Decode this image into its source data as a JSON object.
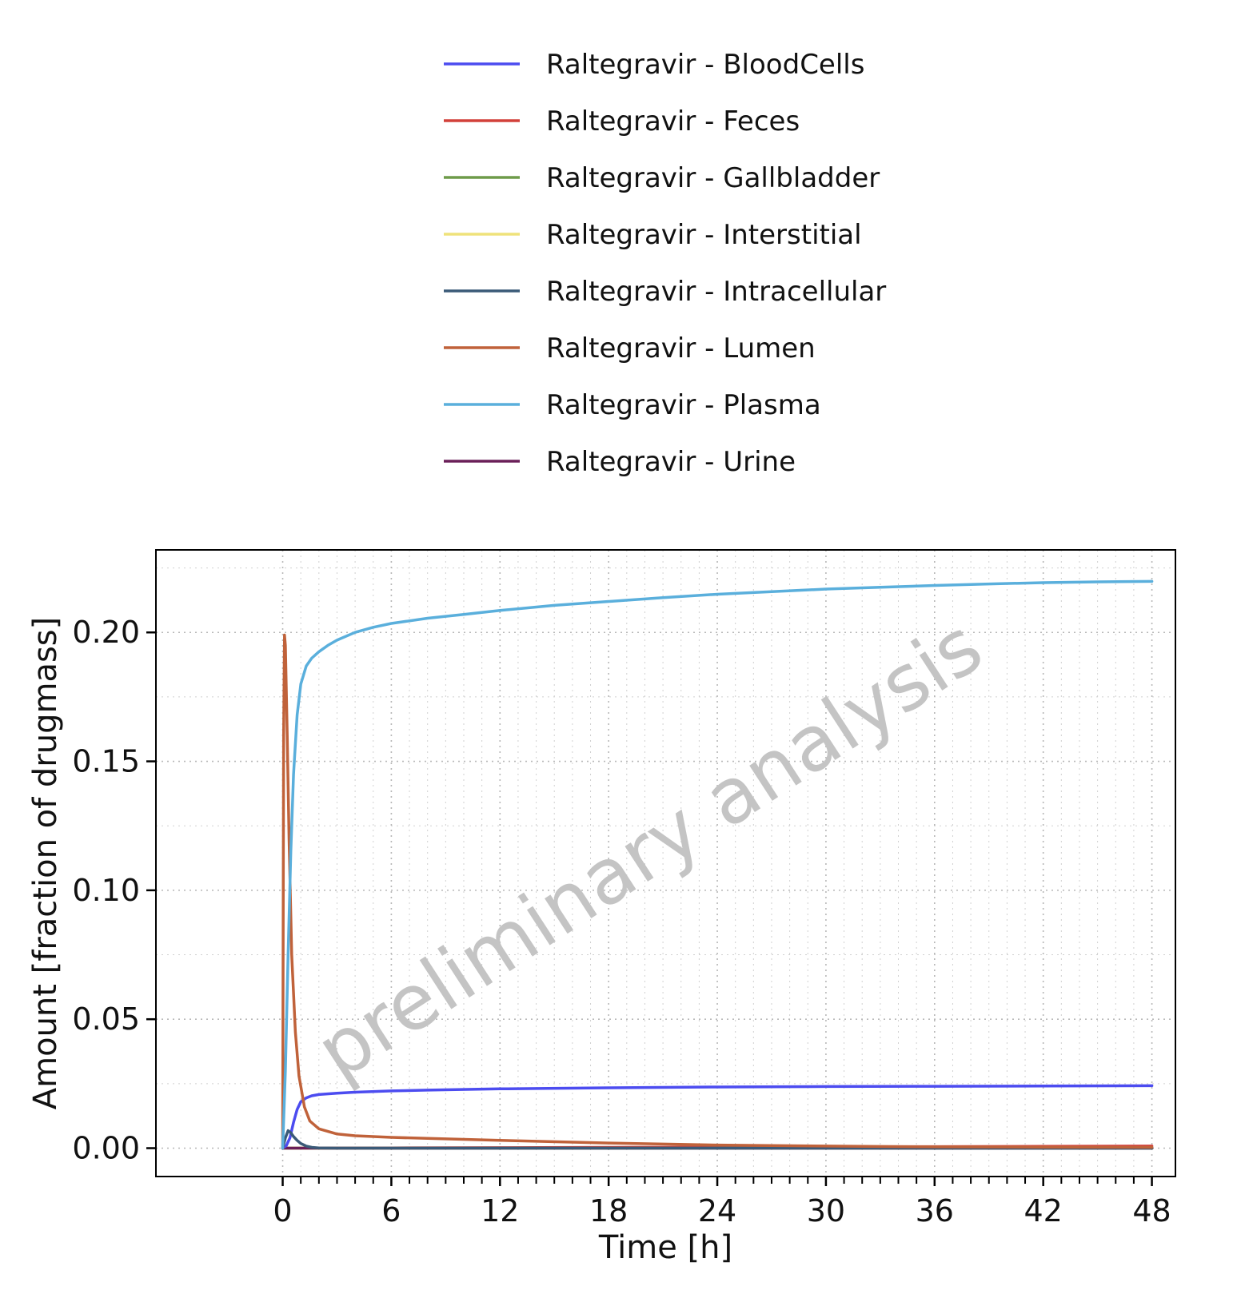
{
  "chart_data": {
    "type": "line",
    "xlabel": "Time [h]",
    "ylabel": "Amount [fraction of drugmass]",
    "xlim": [
      -7,
      49.3
    ],
    "ylim": [
      -0.011,
      0.232
    ],
    "x_ticks": [
      0,
      6,
      12,
      18,
      24,
      30,
      36,
      42,
      48
    ],
    "y_ticks": [
      0.0,
      0.05,
      0.1,
      0.15,
      0.2
    ],
    "y_tick_labels": [
      "0.00",
      "0.05",
      "0.10",
      "0.15",
      "0.20"
    ],
    "grid": true,
    "legend_position": "top",
    "watermark": "preliminary analysis",
    "series": [
      {
        "name": "Raltegravir - BloodCells",
        "color": "#4c4cf0",
        "x": [
          0,
          0.2,
          0.4,
          0.6,
          0.8,
          1.0,
          1.3,
          1.6,
          2,
          3,
          4,
          6,
          8,
          12,
          18,
          24,
          30,
          36,
          42,
          48
        ],
        "y": [
          0,
          0.001,
          0.004,
          0.01,
          0.015,
          0.018,
          0.0195,
          0.0203,
          0.0208,
          0.0213,
          0.0217,
          0.0222,
          0.0225,
          0.023,
          0.0234,
          0.0237,
          0.0239,
          0.024,
          0.0241,
          0.0242
        ]
      },
      {
        "name": "Raltegravir - Feces",
        "color": "#d2403a",
        "x": [
          0,
          6,
          12,
          18,
          24,
          30,
          36,
          42,
          48
        ],
        "y": [
          0,
          0.0001,
          0.0002,
          0.0003,
          0.0004,
          0.0005,
          0.0006,
          0.0007,
          0.0008
        ]
      },
      {
        "name": "Raltegravir - Gallbladder",
        "color": "#6e9b4a",
        "x": [
          0,
          6,
          12,
          18,
          24,
          30,
          36,
          42,
          48
        ],
        "y": [
          0,
          0,
          0,
          0,
          0,
          0,
          0,
          0,
          0
        ]
      },
      {
        "name": "Raltegravir - Interstitial",
        "color": "#efe27a",
        "x": [
          0,
          6,
          12,
          18,
          24,
          30,
          36,
          42,
          48
        ],
        "y": [
          0,
          0,
          0,
          0,
          0,
          0,
          0,
          0,
          0
        ]
      },
      {
        "name": "Raltegravir - Intracellular",
        "color": "#3b5a78",
        "x": [
          0,
          0.15,
          0.3,
          0.45,
          0.6,
          0.8,
          1.0,
          1.3,
          1.6,
          2,
          3,
          48
        ],
        "y": [
          0,
          0.004,
          0.0068,
          0.006,
          0.0045,
          0.003,
          0.0018,
          0.0008,
          0.0003,
          0.0001,
          0,
          0
        ]
      },
      {
        "name": "Raltegravir - Lumen",
        "color": "#c0623a",
        "x": [
          0,
          0.05,
          0.1,
          0.15,
          0.25,
          0.35,
          0.5,
          0.7,
          0.9,
          1.2,
          1.5,
          2,
          3,
          4,
          6,
          8,
          12,
          18,
          24,
          30,
          36,
          42,
          48
        ],
        "y": [
          0,
          0.16,
          0.199,
          0.195,
          0.16,
          0.12,
          0.075,
          0.045,
          0.028,
          0.016,
          0.0105,
          0.0075,
          0.0055,
          0.0048,
          0.0042,
          0.0038,
          0.003,
          0.002,
          0.0012,
          0.0008,
          0.0005,
          0.0004,
          0.0003
        ]
      },
      {
        "name": "Raltegravir - Plasma",
        "color": "#5aafdc",
        "x": [
          0,
          0.15,
          0.3,
          0.45,
          0.6,
          0.8,
          1.0,
          1.3,
          1.6,
          2,
          2.5,
          3,
          4,
          5,
          6,
          8,
          10,
          12,
          15,
          18,
          21,
          24,
          27,
          30,
          33,
          36,
          39,
          42,
          45,
          48
        ],
        "y": [
          0,
          0.03,
          0.075,
          0.115,
          0.145,
          0.168,
          0.18,
          0.187,
          0.19,
          0.1925,
          0.195,
          0.197,
          0.2,
          0.202,
          0.2035,
          0.2055,
          0.207,
          0.2085,
          0.2105,
          0.212,
          0.2135,
          0.2148,
          0.2158,
          0.2168,
          0.2175,
          0.2182,
          0.2188,
          0.2193,
          0.2196,
          0.2198
        ]
      },
      {
        "name": "Raltegravir - Urine",
        "color": "#6a1f58",
        "x": [
          0,
          6,
          12,
          18,
          24,
          30,
          36,
          42,
          48
        ],
        "y": [
          0,
          0,
          0,
          0,
          0,
          0,
          0,
          0,
          0
        ]
      }
    ]
  }
}
